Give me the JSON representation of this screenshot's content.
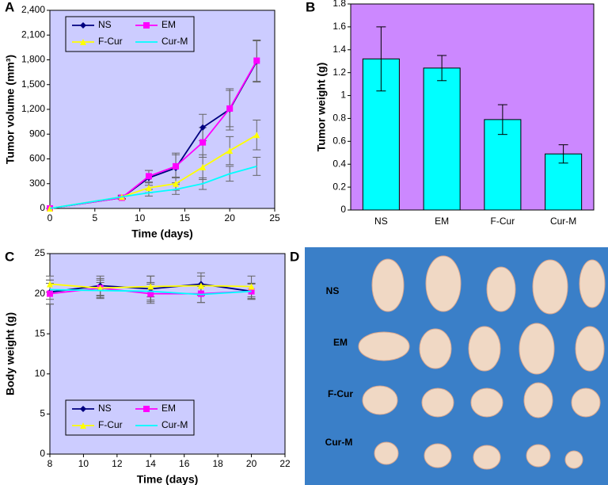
{
  "chart_data": [
    {
      "panel": "A",
      "type": "line",
      "xlabel": "Time (days)",
      "ylabel": "Tumor volume (mm³)",
      "x": [
        0,
        8,
        11,
        14,
        17,
        20,
        23
      ],
      "xlim": [
        0,
        25
      ],
      "xticks": [
        0,
        5,
        10,
        15,
        20,
        25
      ],
      "ylim": [
        0,
        2400
      ],
      "yticks": [
        0,
        300,
        600,
        900,
        {
          "value": 1200,
          "label": "1,200"
        },
        {
          "value": 1500,
          "label": "1,500"
        },
        {
          "value": 1800,
          "label": "1,800"
        },
        {
          "value": 2100,
          "label": "2,100"
        },
        {
          "value": 2400,
          "label": "2,400"
        }
      ],
      "legend": "upper left",
      "background": "#ccccff",
      "series": [
        {
          "name": "NS",
          "color": "#000080",
          "marker": "diamond",
          "values": [
            0,
            130,
            370,
            490,
            980,
            1200,
            1780
          ],
          "errors": [
            0,
            20,
            90,
            180,
            160,
            250,
            250
          ]
        },
        {
          "name": "EM",
          "color": "#ff00ff",
          "marker": "square",
          "values": [
            0,
            130,
            390,
            510,
            800,
            1210,
            1790
          ],
          "errors": [
            0,
            20,
            70,
            140,
            180,
            220,
            250
          ]
        },
        {
          "name": "F-Cur",
          "color": "#ffff00",
          "marker": "triangle",
          "values": [
            0,
            140,
            250,
            300,
            500,
            700,
            890
          ],
          "errors": [
            0,
            20,
            60,
            80,
            150,
            170,
            180
          ]
        },
        {
          "name": "Cur-M",
          "color": "#00ffff",
          "values": [
            0,
            140,
            190,
            230,
            300,
            420,
            510
          ],
          "errors": [
            0,
            20,
            40,
            60,
            70,
            90,
            110
          ]
        }
      ]
    },
    {
      "panel": "B",
      "type": "bar",
      "ylabel": "Tumor weight (g)",
      "categories": [
        "NS",
        "EM",
        "F-Cur",
        "Cur-M"
      ],
      "values": [
        1.32,
        1.24,
        0.79,
        0.49
      ],
      "errors": [
        0.28,
        0.11,
        0.13,
        0.08
      ],
      "color": "#00ffff",
      "background": "#cc88ff",
      "ylim": [
        0,
        1.8
      ],
      "yticks": [
        0,
        0.2,
        0.4,
        0.6,
        0.8,
        1,
        1.2,
        1.4,
        1.6,
        1.8
      ]
    },
    {
      "panel": "C",
      "type": "line",
      "xlabel": "Time (days)",
      "ylabel": "Body weight (g)",
      "x": [
        8,
        11,
        14,
        17,
        20
      ],
      "xlim": [
        8,
        22
      ],
      "xticks": [
        8,
        10,
        12,
        14,
        16,
        18,
        20,
        22
      ],
      "ylim": [
        0,
        25
      ],
      "yticks": [
        0,
        5,
        10,
        15,
        20,
        25
      ],
      "legend": "lower left",
      "background": "#ccccff",
      "series": [
        {
          "name": "NS",
          "color": "#000080",
          "marker": "diamond",
          "values": [
            20.2,
            21.0,
            20.6,
            21.2,
            20.3
          ],
          "errors": [
            1.5,
            1.2,
            1.6,
            1.4,
            0.9
          ]
        },
        {
          "name": "EM",
          "color": "#ff00ff",
          "marker": "square",
          "values": [
            20.0,
            20.7,
            20.0,
            20.0,
            20.3
          ],
          "errors": [
            1.3,
            1.2,
            1.2,
            1.1,
            1.0
          ]
        },
        {
          "name": "F-Cur",
          "color": "#ffff00",
          "marker": "triangle",
          "values": [
            21.2,
            20.7,
            20.9,
            21.0,
            20.9
          ],
          "errors": [
            1.0,
            1.0,
            1.3,
            1.2,
            1.3
          ]
        },
        {
          "name": "Cur-M",
          "color": "#00ffff",
          "values": [
            20.5,
            20.4,
            20.3,
            19.9,
            20.3
          ],
          "errors": [
            1.2,
            1.0,
            1.1,
            1.0,
            1.0
          ]
        }
      ]
    }
  ],
  "photo": {
    "panel": "D",
    "rows": [
      "NS",
      "EM",
      "F-Cur",
      "Cur-M"
    ]
  }
}
